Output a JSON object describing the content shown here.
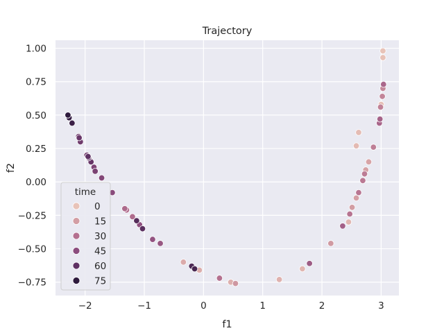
{
  "chart_data": {
    "type": "scatter",
    "title": "Trajectory",
    "xlabel": "f1",
    "ylabel": "f2",
    "xlim": [
      -2.5,
      3.3
    ],
    "ylim": [
      -0.85,
      1.06
    ],
    "xticks": [
      -2,
      -1,
      0,
      1,
      2,
      3
    ],
    "xtick_labels": [
      "−2",
      "−1",
      "0",
      "1",
      "2",
      "3"
    ],
    "yticks": [
      -0.75,
      -0.5,
      -0.25,
      0.0,
      0.25,
      0.5,
      0.75,
      1.0
    ],
    "ytick_labels": [
      "−0.75",
      "−0.50",
      "−0.25",
      "0.00",
      "0.25",
      "0.50",
      "0.75",
      "1.00"
    ],
    "grid": true,
    "legend": {
      "title": "time",
      "position": "lower-left",
      "entries": [
        "0",
        "15",
        "30",
        "45",
        "60",
        "75"
      ],
      "colors": [
        "#e8c3b8",
        "#d39ea4",
        "#b4708f",
        "#8c4d7e",
        "#5f3163",
        "#2e1a3d"
      ]
    },
    "points": [
      {
        "x": 3.03,
        "y": 0.98,
        "t": 0
      },
      {
        "x": 3.03,
        "y": 0.93,
        "t": 1
      },
      {
        "x": 3.0,
        "y": 0.58,
        "t": 2
      },
      {
        "x": 2.62,
        "y": 0.37,
        "t": 3
      },
      {
        "x": 2.58,
        "y": 0.27,
        "t": 4
      },
      {
        "x": 2.45,
        "y": -0.3,
        "t": 5
      },
      {
        "x": 1.67,
        "y": -0.65,
        "t": 6
      },
      {
        "x": 1.28,
        "y": -0.73,
        "t": 7
      },
      {
        "x": 0.46,
        "y": -0.75,
        "t": 8
      },
      {
        "x": -0.07,
        "y": -0.66,
        "t": 9
      },
      {
        "x": -0.34,
        "y": -0.6,
        "t": 10
      },
      {
        "x": 2.79,
        "y": 0.15,
        "t": 13
      },
      {
        "x": 2.74,
        "y": 0.09,
        "t": 14
      },
      {
        "x": 2.58,
        "y": -0.12,
        "t": 15
      },
      {
        "x": 2.51,
        "y": -0.19,
        "t": 16
      },
      {
        "x": 2.15,
        "y": -0.46,
        "t": 17
      },
      {
        "x": 0.54,
        "y": -0.76,
        "t": 18
      },
      {
        "x": 3.03,
        "y": 0.7,
        "t": 23
      },
      {
        "x": 3.02,
        "y": 0.64,
        "t": 24
      },
      {
        "x": 2.99,
        "y": 0.56,
        "t": 25
      },
      {
        "x": 2.87,
        "y": 0.26,
        "t": 26
      },
      {
        "x": 2.72,
        "y": 0.06,
        "t": 27
      },
      {
        "x": 2.69,
        "y": 0.01,
        "t": 28
      },
      {
        "x": 2.62,
        "y": -0.08,
        "t": 29
      },
      {
        "x": 2.47,
        "y": -0.24,
        "t": 30
      },
      {
        "x": 0.27,
        "y": -0.72,
        "t": 31
      },
      {
        "x": -1.3,
        "y": -0.21,
        "t": 32
      },
      {
        "x": -1.2,
        "y": -0.26,
        "t": 33
      },
      {
        "x": -1.33,
        "y": -0.2,
        "t": 34
      },
      {
        "x": 3.04,
        "y": 0.73,
        "t": 35
      },
      {
        "x": 2.97,
        "y": 0.44,
        "t": 36
      },
      {
        "x": 2.98,
        "y": 0.47,
        "t": 37
      },
      {
        "x": 2.35,
        "y": -0.33,
        "t": 38
      },
      {
        "x": 1.79,
        "y": -0.61,
        "t": 40
      },
      {
        "x": -0.73,
        "y": -0.46,
        "t": 42
      },
      {
        "x": -0.86,
        "y": -0.43,
        "t": 44
      },
      {
        "x": -1.08,
        "y": -0.32,
        "t": 46
      },
      {
        "x": -1.54,
        "y": -0.08,
        "t": 48
      },
      {
        "x": -1.72,
        "y": 0.03,
        "t": 50
      },
      {
        "x": -1.85,
        "y": 0.11,
        "t": 52
      },
      {
        "x": -1.83,
        "y": 0.08,
        "t": 53
      },
      {
        "x": -1.97,
        "y": 0.2,
        "t": 55
      },
      {
        "x": -2.08,
        "y": 0.3,
        "t": 57
      },
      {
        "x": -2.11,
        "y": 0.34,
        "t": 58
      },
      {
        "x": -2.1,
        "y": 0.33,
        "t": 59
      },
      {
        "x": -1.9,
        "y": 0.15,
        "t": 60
      },
      {
        "x": -1.94,
        "y": 0.18,
        "t": 62
      },
      {
        "x": -1.95,
        "y": 0.19,
        "t": 63
      },
      {
        "x": -1.03,
        "y": -0.35,
        "t": 64
      },
      {
        "x": -1.13,
        "y": -0.29,
        "t": 66
      },
      {
        "x": -0.2,
        "y": -0.63,
        "t": 68
      },
      {
        "x": -0.15,
        "y": -0.65,
        "t": 70
      },
      {
        "x": -2.22,
        "y": 0.44,
        "t": 74
      },
      {
        "x": -2.27,
        "y": 0.48,
        "t": 76
      },
      {
        "x": -2.29,
        "y": 0.5,
        "t": 78
      }
    ]
  }
}
